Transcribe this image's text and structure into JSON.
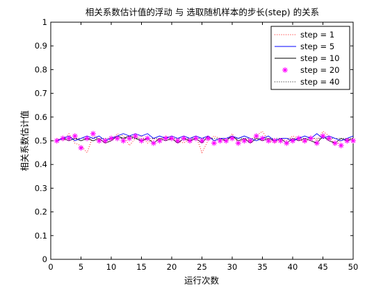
{
  "chart_data": {
    "type": "line",
    "title": "相关系数估计值的浮动 与 选取随机样本的步长(step) 的关系",
    "xlabel": "运行次数",
    "ylabel": "相关系数估计值",
    "xlim": [
      0,
      50
    ],
    "ylim": [
      0,
      1
    ],
    "xticks": [
      0,
      5,
      10,
      15,
      20,
      25,
      30,
      35,
      40,
      45,
      50
    ],
    "yticks": [
      0,
      0.1,
      0.2,
      0.3,
      0.4,
      0.5,
      0.6,
      0.7,
      0.8,
      0.9,
      1
    ],
    "xtick_labels": [
      "0",
      "5",
      "10",
      "15",
      "20",
      "25",
      "30",
      "35",
      "40",
      "45",
      "50"
    ],
    "ytick_labels": [
      "0",
      "0.1",
      "0.2",
      "0.3",
      "0.4",
      "0.5",
      "0.6",
      "0.7",
      "0.8",
      "0.9",
      "1"
    ],
    "grid": false,
    "legend_position": "top-right",
    "x": [
      1,
      2,
      3,
      4,
      5,
      6,
      7,
      8,
      9,
      10,
      11,
      12,
      13,
      14,
      15,
      16,
      17,
      18,
      19,
      20,
      21,
      22,
      23,
      24,
      25,
      26,
      27,
      28,
      29,
      30,
      31,
      32,
      33,
      34,
      35,
      36,
      37,
      38,
      39,
      40,
      41,
      42,
      43,
      44,
      45,
      46,
      47,
      48,
      49,
      50
    ],
    "series": [
      {
        "name": "step = 1",
        "color": "#ff0000",
        "style": "dotted",
        "values": [
          0.51,
          0.5,
          0.53,
          0.49,
          0.48,
          0.45,
          0.52,
          0.51,
          0.49,
          0.5,
          0.53,
          0.52,
          0.48,
          0.51,
          0.52,
          0.49,
          0.51,
          0.5,
          0.52,
          0.51,
          0.5,
          0.49,
          0.51,
          0.52,
          0.45,
          0.5,
          0.52,
          0.51,
          0.5,
          0.53,
          0.49,
          0.51,
          0.5,
          0.52,
          0.54,
          0.5,
          0.49,
          0.51,
          0.5,
          0.52,
          0.51,
          0.49,
          0.52,
          0.5,
          0.54,
          0.52,
          0.48,
          0.5,
          0.51,
          0.5
        ]
      },
      {
        "name": "step = 5",
        "color": "#0000ff",
        "style": "solid",
        "values": [
          0.5,
          0.51,
          0.52,
          0.5,
          0.51,
          0.52,
          0.51,
          0.52,
          0.5,
          0.51,
          0.52,
          0.53,
          0.52,
          0.53,
          0.52,
          0.53,
          0.51,
          0.52,
          0.51,
          0.52,
          0.51,
          0.52,
          0.51,
          0.52,
          0.51,
          0.52,
          0.5,
          0.51,
          0.51,
          0.52,
          0.51,
          0.52,
          0.51,
          0.5,
          0.51,
          0.52,
          0.5,
          0.51,
          0.51,
          0.5,
          0.51,
          0.52,
          0.51,
          0.53,
          0.51,
          0.52,
          0.51,
          0.5,
          0.51,
          0.52
        ]
      },
      {
        "name": "step = 10",
        "color": "#000000",
        "style": "solid",
        "values": [
          0.5,
          0.51,
          0.5,
          0.51,
          0.5,
          0.51,
          0.5,
          0.51,
          0.49,
          0.5,
          0.52,
          0.51,
          0.52,
          0.51,
          0.5,
          0.51,
          0.49,
          0.51,
          0.5,
          0.51,
          0.49,
          0.51,
          0.5,
          0.51,
          0.49,
          0.52,
          0.5,
          0.51,
          0.5,
          0.52,
          0.5,
          0.51,
          0.49,
          0.51,
          0.5,
          0.51,
          0.5,
          0.51,
          0.49,
          0.51,
          0.5,
          0.51,
          0.5,
          0.49,
          0.52,
          0.5,
          0.49,
          0.51,
          0.5,
          0.51
        ]
      },
      {
        "name": "step = 20",
        "color": "#ff00ff",
        "style": "marker",
        "values": [
          0.5,
          0.51,
          0.51,
          0.52,
          0.47,
          0.51,
          0.53,
          0.5,
          0.5,
          0.51,
          0.51,
          0.5,
          0.51,
          0.52,
          0.5,
          0.51,
          0.49,
          0.5,
          0.51,
          0.51,
          0.5,
          0.51,
          0.5,
          0.51,
          0.5,
          0.51,
          0.49,
          0.5,
          0.5,
          0.51,
          0.49,
          0.5,
          0.5,
          0.52,
          0.51,
          0.5,
          0.5,
          0.5,
          0.49,
          0.5,
          0.51,
          0.5,
          0.51,
          0.49,
          0.52,
          0.51,
          0.49,
          0.48,
          0.5,
          0.5
        ]
      },
      {
        "name": "step = 40",
        "color": "#000000",
        "style": "dotted",
        "values": [
          0.5,
          0.51,
          0.51,
          0.51,
          0.51,
          0.51,
          0.51,
          0.51,
          0.51,
          0.51,
          0.51,
          0.51,
          0.51,
          0.51,
          0.51,
          0.51,
          0.51,
          0.51,
          0.51,
          0.51,
          0.51,
          0.51,
          0.51,
          0.51,
          0.51,
          0.51,
          0.51,
          0.51,
          0.51,
          0.51,
          0.51,
          0.51,
          0.51,
          0.51,
          0.51,
          0.51,
          0.51,
          0.51,
          0.51,
          0.51,
          0.51,
          0.51,
          0.51,
          0.51,
          0.51,
          0.51,
          0.51,
          0.51,
          0.51,
          0.51
        ]
      }
    ]
  }
}
